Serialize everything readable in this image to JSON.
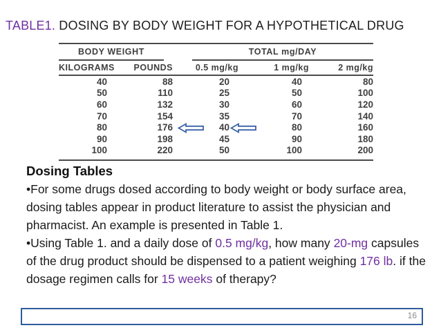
{
  "title": {
    "label": "TABLE1.",
    "text": " DOSING BY BODY WEIGHT FOR A HYPOTHETICAL DRUG"
  },
  "table": {
    "group_headers": [
      {
        "label": "BODY WEIGHT"
      },
      {
        "label": "TOTAL mg/DAY"
      }
    ],
    "columns": [
      "KILOGRAMS",
      "POUNDS",
      "0.5 mg/kg",
      "1 mg/kg",
      "2 mg/kg"
    ],
    "rows": [
      [
        "40",
        "88",
        "20",
        "40",
        "80"
      ],
      [
        "50",
        "110",
        "25",
        "50",
        "100"
      ],
      [
        "60",
        "132",
        "30",
        "60",
        "120"
      ],
      [
        "70",
        "154",
        "35",
        "70",
        "140"
      ],
      [
        "80",
        "176",
        "40",
        "80",
        "160"
      ],
      [
        "90",
        "198",
        "45",
        "90",
        "180"
      ],
      [
        "100",
        "220",
        "50",
        "100",
        "200"
      ]
    ],
    "arrow_annotations": [
      {
        "row_index": 4,
        "col_index": 1,
        "icon": "left-arrow-icon"
      },
      {
        "row_index": 4,
        "col_index": 2,
        "icon": "left-arrow-icon"
      }
    ]
  },
  "body": {
    "heading": "Dosing Tables",
    "paragraphs": [
      {
        "segments": [
          {
            "text": "•For some drugs dosed according to body weight or body surface area, dosing tables appear in product literature to assist the physician and pharmacist. An example is presented in Table 1.",
            "emphasis": false
          }
        ]
      },
      {
        "segments": [
          {
            "text": "•Using Table 1. and a daily dose of ",
            "emphasis": false
          },
          {
            "text": "0.5 mg/kg",
            "emphasis": true
          },
          {
            "text": ", how many ",
            "emphasis": false
          },
          {
            "text": "20-mg",
            "emphasis": true
          },
          {
            "text": " capsules of the drug product should be dispensed to a patient weighing ",
            "emphasis": false
          },
          {
            "text": "176 lb",
            "emphasis": true
          },
          {
            "text": ". if the dosage regimen calls for ",
            "emphasis": false
          },
          {
            "text": "15 weeks",
            "emphasis": true
          },
          {
            "text": " of therapy?",
            "emphasis": false
          }
        ]
      }
    ]
  },
  "footer": {
    "page_number": "16"
  },
  "colors": {
    "accent_purple": "#7030A0",
    "arrow_blue": "#3a62a7",
    "box_border_blue": "#2e5b9e",
    "table_text": "#3f3f3f",
    "page_number_gray": "#8c8c8c"
  }
}
